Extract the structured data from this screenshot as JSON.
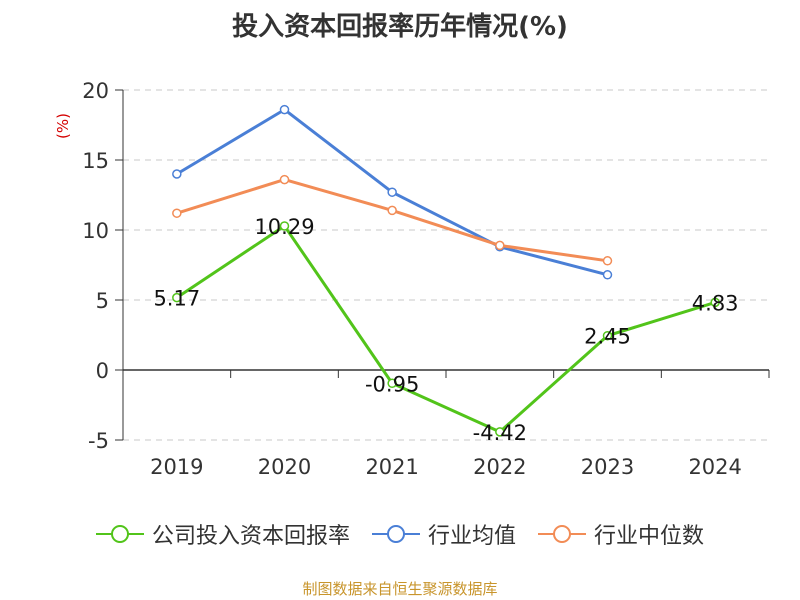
{
  "chart_data": {
    "type": "line",
    "title": "投入资本回报率历年情况(%)",
    "ylabel": "(%)",
    "xlabel": "",
    "categories": [
      "2019",
      "2020",
      "2021",
      "2022",
      "2023",
      "2024"
    ],
    "ylim": [
      -5,
      20
    ],
    "yticks": [
      20,
      15,
      10,
      5,
      0,
      -5
    ],
    "grid": "horizontal-dashed",
    "legend_position": "bottom",
    "series": [
      {
        "name": "公司投入资本回报率",
        "color": "#52c41a",
        "values": [
          5.17,
          10.29,
          -0.95,
          -4.42,
          2.45,
          4.83
        ],
        "labels": [
          "5.17",
          "10.29",
          "-0.95",
          "-4.42",
          "2.45",
          "4.83"
        ]
      },
      {
        "name": "行业均值",
        "color": "#4a7fd6",
        "values": [
          14.0,
          18.6,
          12.7,
          8.8,
          6.8,
          null
        ]
      },
      {
        "name": "行业中位数",
        "color": "#f28c56",
        "values": [
          11.2,
          13.6,
          11.4,
          8.9,
          7.8,
          null
        ]
      }
    ]
  },
  "source": "制图数据来自恒生聚源数据库"
}
